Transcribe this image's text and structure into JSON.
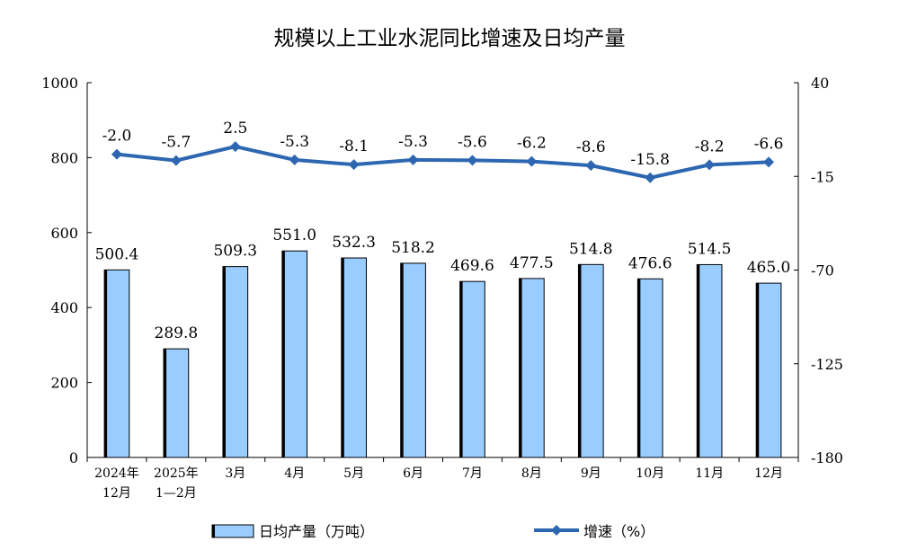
{
  "chart_data": {
    "type": "bar+line",
    "title": "规模以上工业水泥同比增速及日均产量",
    "categories": [
      [
        "2024年",
        "12月"
      ],
      [
        "2025年",
        "1—2月"
      ],
      [
        "3月"
      ],
      [
        "4月"
      ],
      [
        "5月"
      ],
      [
        "6月"
      ],
      [
        "7月"
      ],
      [
        "8月"
      ],
      [
        "9月"
      ],
      [
        "10月"
      ],
      [
        "11月"
      ],
      [
        "12月"
      ]
    ],
    "series": [
      {
        "name": "日均产量（万吨）",
        "type": "bar",
        "axis": "left",
        "color": "#99CCFF",
        "values": [
          500.4,
          289.8,
          509.3,
          551.0,
          532.3,
          518.2,
          469.6,
          477.5,
          514.8,
          476.6,
          514.5,
          465.0
        ],
        "labels": [
          "500.4",
          "289.8",
          "509.3",
          "551.0",
          "532.3",
          "518.2",
          "469.6",
          "477.5",
          "514.8",
          "476.6",
          "514.5",
          "465.0"
        ]
      },
      {
        "name": "增速（%）",
        "type": "line",
        "axis": "right",
        "color": "#2E67B1",
        "values": [
          -2.0,
          -5.7,
          2.5,
          -5.3,
          -8.1,
          -5.3,
          -5.6,
          -6.2,
          -8.6,
          -15.8,
          -8.2,
          -6.6
        ],
        "labels": [
          "-2.0",
          "-5.7",
          "2.5",
          "-5.3",
          "-8.1",
          "-5.3",
          "-5.6",
          "-6.2",
          "-8.6",
          "-15.8",
          "-8.2",
          "-6.6"
        ]
      }
    ],
    "y_left": {
      "min": 0,
      "max": 1000,
      "ticks": [
        "0",
        "200",
        "400",
        "600",
        "800",
        "1000"
      ]
    },
    "y_right": {
      "min": -180,
      "max": 40,
      "ticks": [
        "-180",
        "-125",
        "-70",
        "-15",
        "40"
      ]
    },
    "legend_position": "bottom",
    "grid": false
  }
}
